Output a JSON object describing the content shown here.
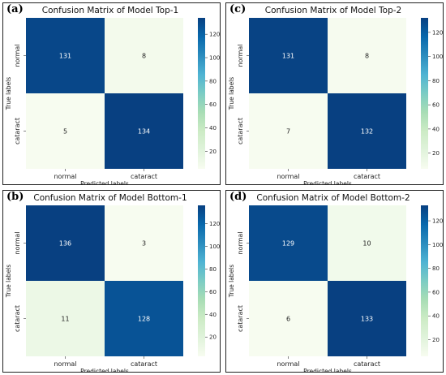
{
  "chart_data": [
    {
      "type": "heatmap",
      "panel": "(a)",
      "title": "Confusion Matrix of Model Top-1",
      "xlabel": "Predicted labels",
      "ylabel": "True labels",
      "x_categories": [
        "normal",
        "cataract"
      ],
      "y_categories": [
        "normal",
        "cataract"
      ],
      "values": [
        [
          131,
          8
        ],
        [
          5,
          134
        ]
      ],
      "colorbar": {
        "min": 5,
        "max": 134,
        "ticks": [
          20,
          40,
          60,
          80,
          100,
          120
        ]
      }
    },
    {
      "type": "heatmap",
      "panel": "(c)",
      "title": "Confusion Matrix of Model Top-2",
      "xlabel": "Predicted labels",
      "ylabel": "True labels",
      "x_categories": [
        "normal",
        "cataract"
      ],
      "y_categories": [
        "normal",
        "cataract"
      ],
      "values": [
        [
          131,
          8
        ],
        [
          7,
          132
        ]
      ],
      "colorbar": {
        "min": 7,
        "max": 132,
        "ticks": [
          20,
          40,
          60,
          80,
          100,
          120
        ]
      }
    },
    {
      "type": "heatmap",
      "panel": "(b)",
      "title": "Confusion Matrix of Model Bottom-1",
      "xlabel": "Predicted labels",
      "ylabel": "True labels",
      "x_categories": [
        "normal",
        "cataract"
      ],
      "y_categories": [
        "normal",
        "cataract"
      ],
      "values": [
        [
          136,
          3
        ],
        [
          11,
          128
        ]
      ],
      "colorbar": {
        "min": 3,
        "max": 136,
        "ticks": [
          20,
          40,
          60,
          80,
          100,
          120
        ]
      }
    },
    {
      "type": "heatmap",
      "panel": "(d)",
      "title": "Confusion Matrix of Model Bottom-2",
      "xlabel": "Predicted labels",
      "ylabel": "True labels",
      "x_categories": [
        "normal",
        "cataract"
      ],
      "y_categories": [
        "normal",
        "cataract"
      ],
      "values": [
        [
          129,
          10
        ],
        [
          6,
          133
        ]
      ],
      "colorbar": {
        "min": 6,
        "max": 133,
        "ticks": [
          20,
          40,
          60,
          80,
          100,
          120
        ]
      }
    }
  ],
  "colormap": "GnBu",
  "colormap_stops": [
    "#f7fcf0",
    "#e0f3db",
    "#ccebc5",
    "#a8ddb5",
    "#7bccc4",
    "#4eb3d3",
    "#2b8cbe",
    "#0868ac",
    "#084081"
  ]
}
